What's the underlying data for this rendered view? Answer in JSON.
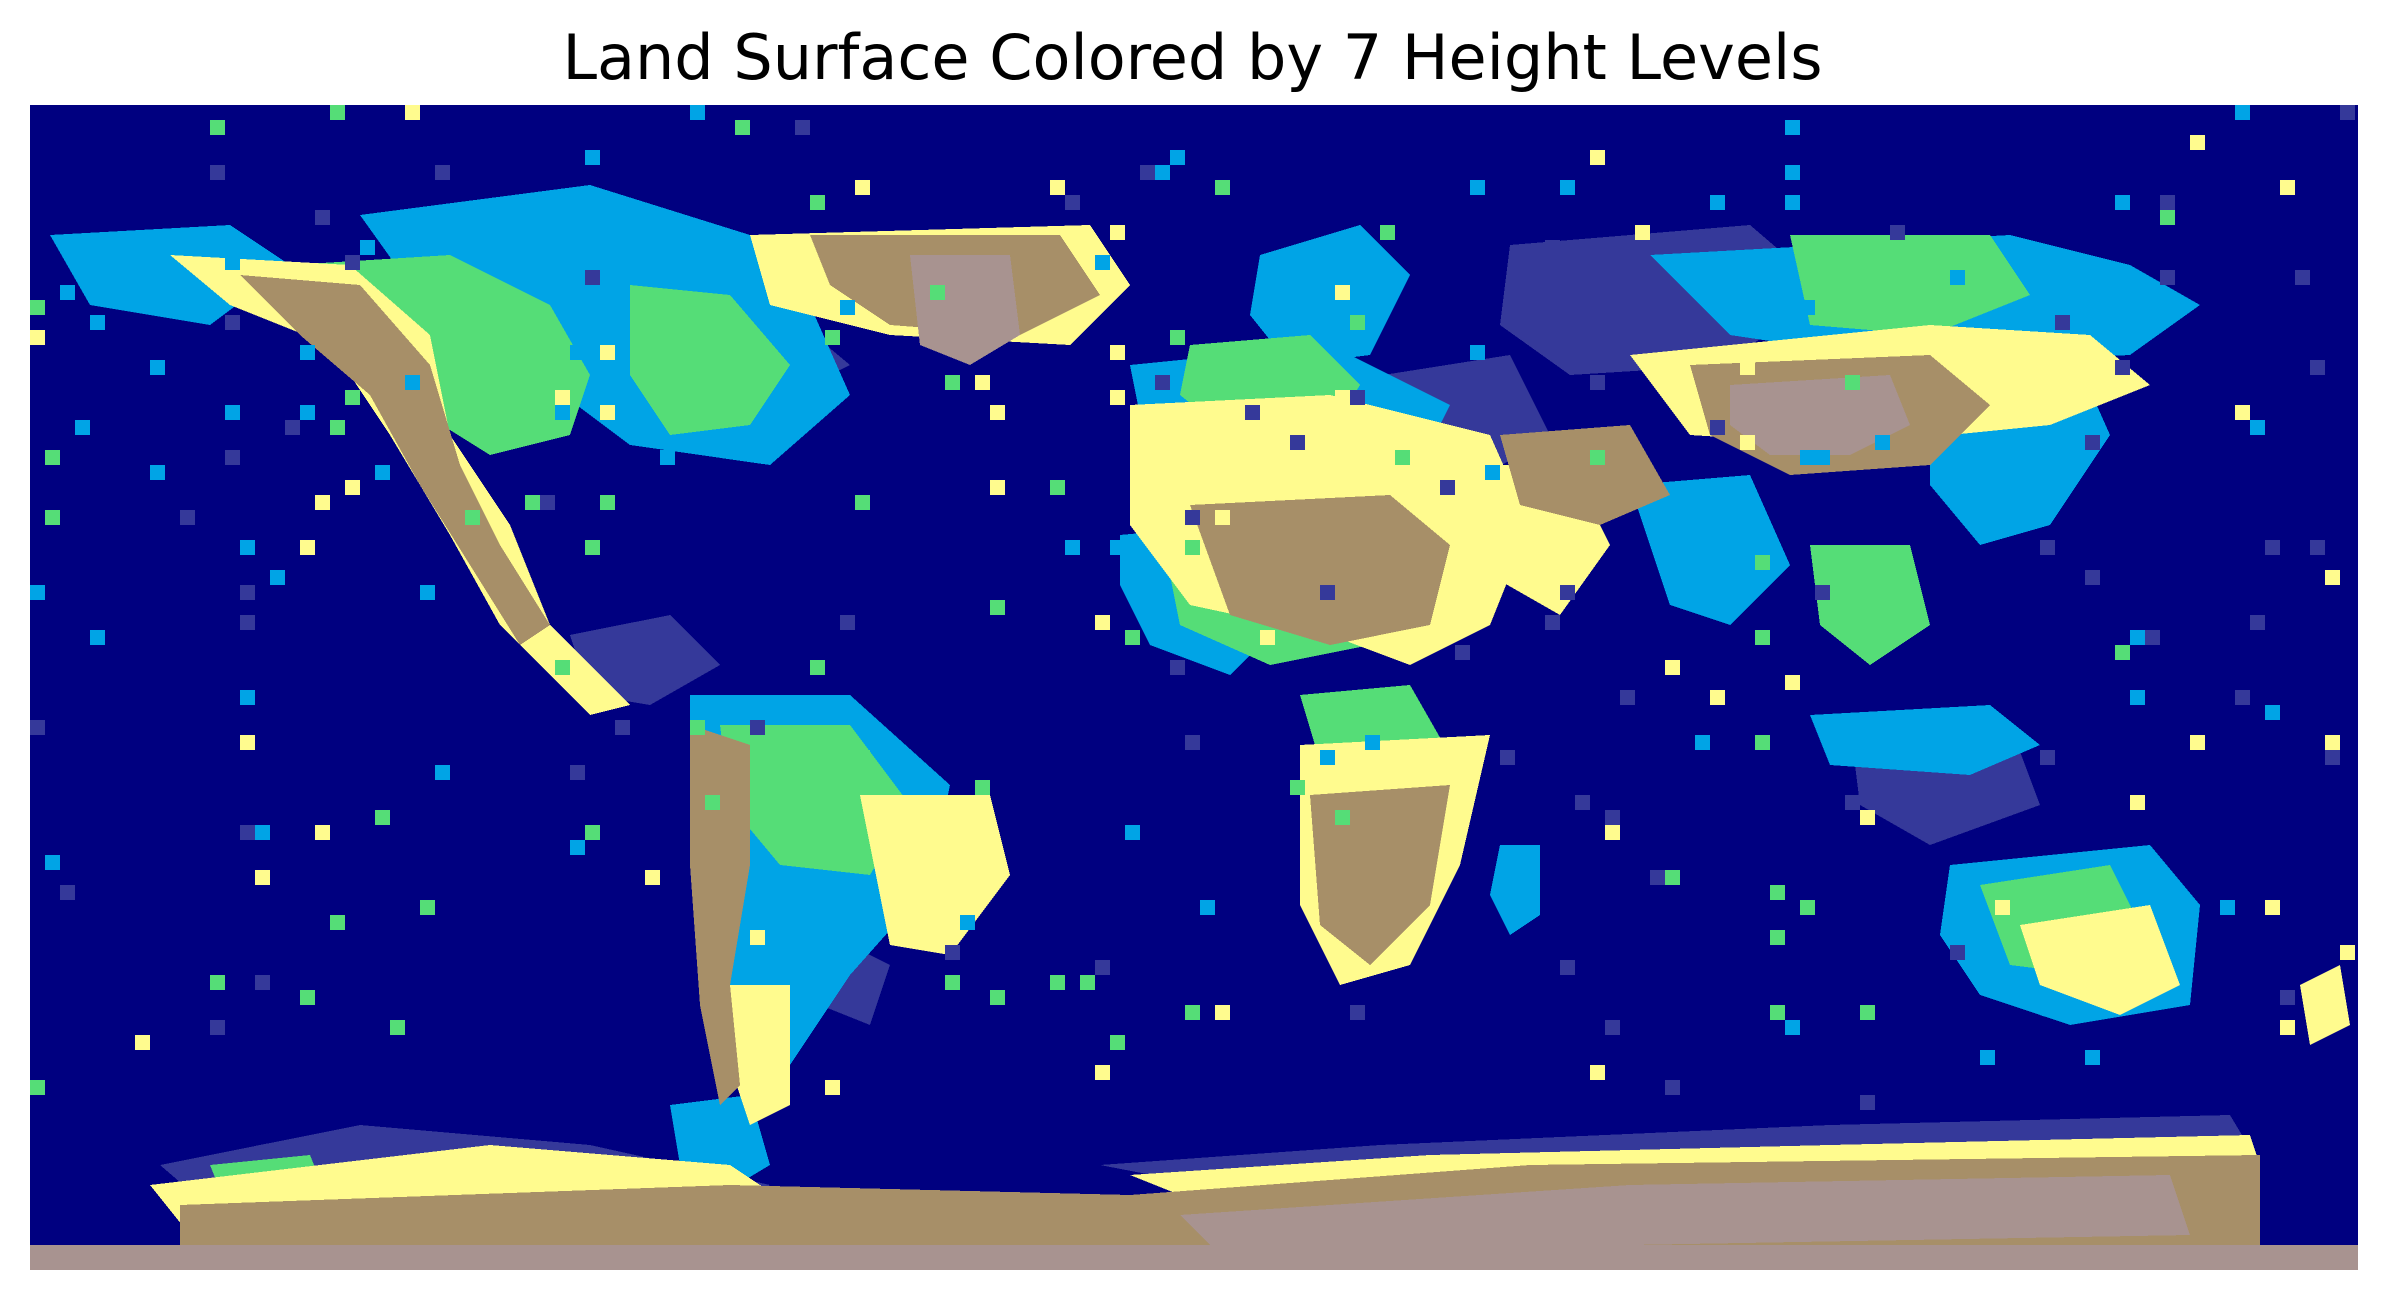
{
  "title": "Land Surface Colored by 7 Height Levels",
  "map": {
    "type": "world-elevation-raster",
    "levels": 7,
    "colors": {
      "level0_deep_ocean": "#000080",
      "level1_shallow_ocean": "#35399a",
      "level2_coast": "#00a4e6",
      "level3_lowland": "#55dd77",
      "level4_upland": "#fffb8e",
      "level5_highland": "#a78f68",
      "level6_summit": "#a89390"
    }
  }
}
